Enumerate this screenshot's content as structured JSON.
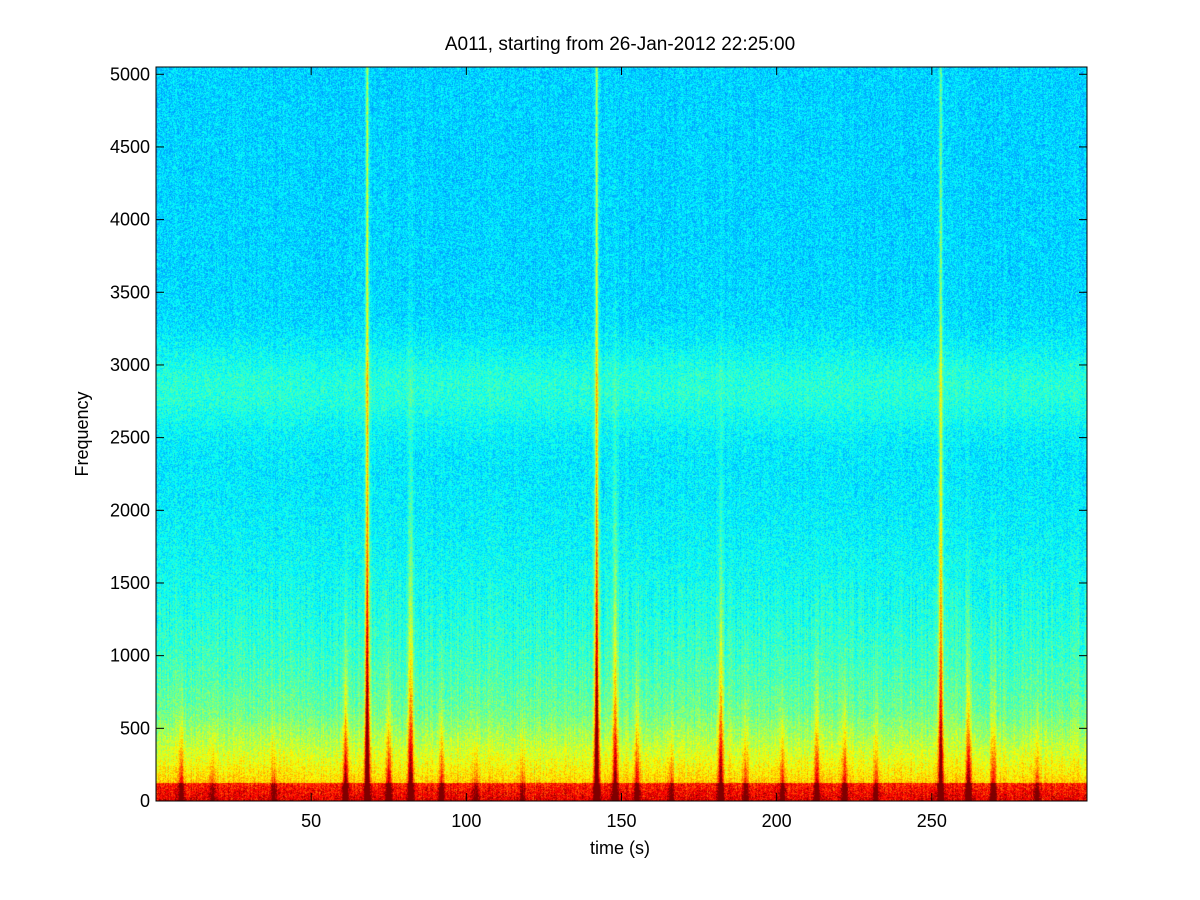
{
  "chart_data": {
    "type": "heatmap",
    "title": "A011, starting from 26-Jan-2012 22:25:00",
    "xlabel": "time (s)",
    "ylabel": "Frequency",
    "xlim": [
      0,
      300
    ],
    "ylim": [
      0,
      5050
    ],
    "xticks": [
      50,
      100,
      150,
      200,
      250
    ],
    "yticks": [
      0,
      500,
      1000,
      1500,
      2000,
      2500,
      3000,
      3500,
      4000,
      4500,
      5000
    ],
    "colormap": "jet",
    "background_color": "#ffffff",
    "grid": false,
    "legend": "none",
    "energy_events": [
      {
        "time": 8,
        "strength": 0.55,
        "reach_hz": 900
      },
      {
        "time": 18,
        "strength": 0.35,
        "reach_hz": 600
      },
      {
        "time": 38,
        "strength": 0.4,
        "reach_hz": 700
      },
      {
        "time": 61,
        "strength": 0.8,
        "reach_hz": 1500
      },
      {
        "time": 68,
        "strength": 1.0,
        "reach_hz": 5050
      },
      {
        "time": 75,
        "strength": 0.7,
        "reach_hz": 1100
      },
      {
        "time": 82,
        "strength": 0.85,
        "reach_hz": 3300
      },
      {
        "time": 92,
        "strength": 0.5,
        "reach_hz": 900
      },
      {
        "time": 103,
        "strength": 0.35,
        "reach_hz": 600
      },
      {
        "time": 118,
        "strength": 0.35,
        "reach_hz": 600
      },
      {
        "time": 142,
        "strength": 1.0,
        "reach_hz": 5050
      },
      {
        "time": 148,
        "strength": 0.75,
        "reach_hz": 3300
      },
      {
        "time": 155,
        "strength": 0.55,
        "reach_hz": 1200
      },
      {
        "time": 166,
        "strength": 0.4,
        "reach_hz": 700
      },
      {
        "time": 182,
        "strength": 0.75,
        "reach_hz": 2700
      },
      {
        "time": 190,
        "strength": 0.45,
        "reach_hz": 800
      },
      {
        "time": 202,
        "strength": 0.5,
        "reach_hz": 900
      },
      {
        "time": 213,
        "strength": 0.6,
        "reach_hz": 1400
      },
      {
        "time": 222,
        "strength": 0.55,
        "reach_hz": 1200
      },
      {
        "time": 232,
        "strength": 0.45,
        "reach_hz": 900
      },
      {
        "time": 253,
        "strength": 0.75,
        "reach_hz": 5050
      },
      {
        "time": 262,
        "strength": 0.8,
        "reach_hz": 1500
      },
      {
        "time": 270,
        "strength": 0.55,
        "reach_hz": 1300
      },
      {
        "time": 284,
        "strength": 0.4,
        "reach_hz": 700
      }
    ]
  }
}
